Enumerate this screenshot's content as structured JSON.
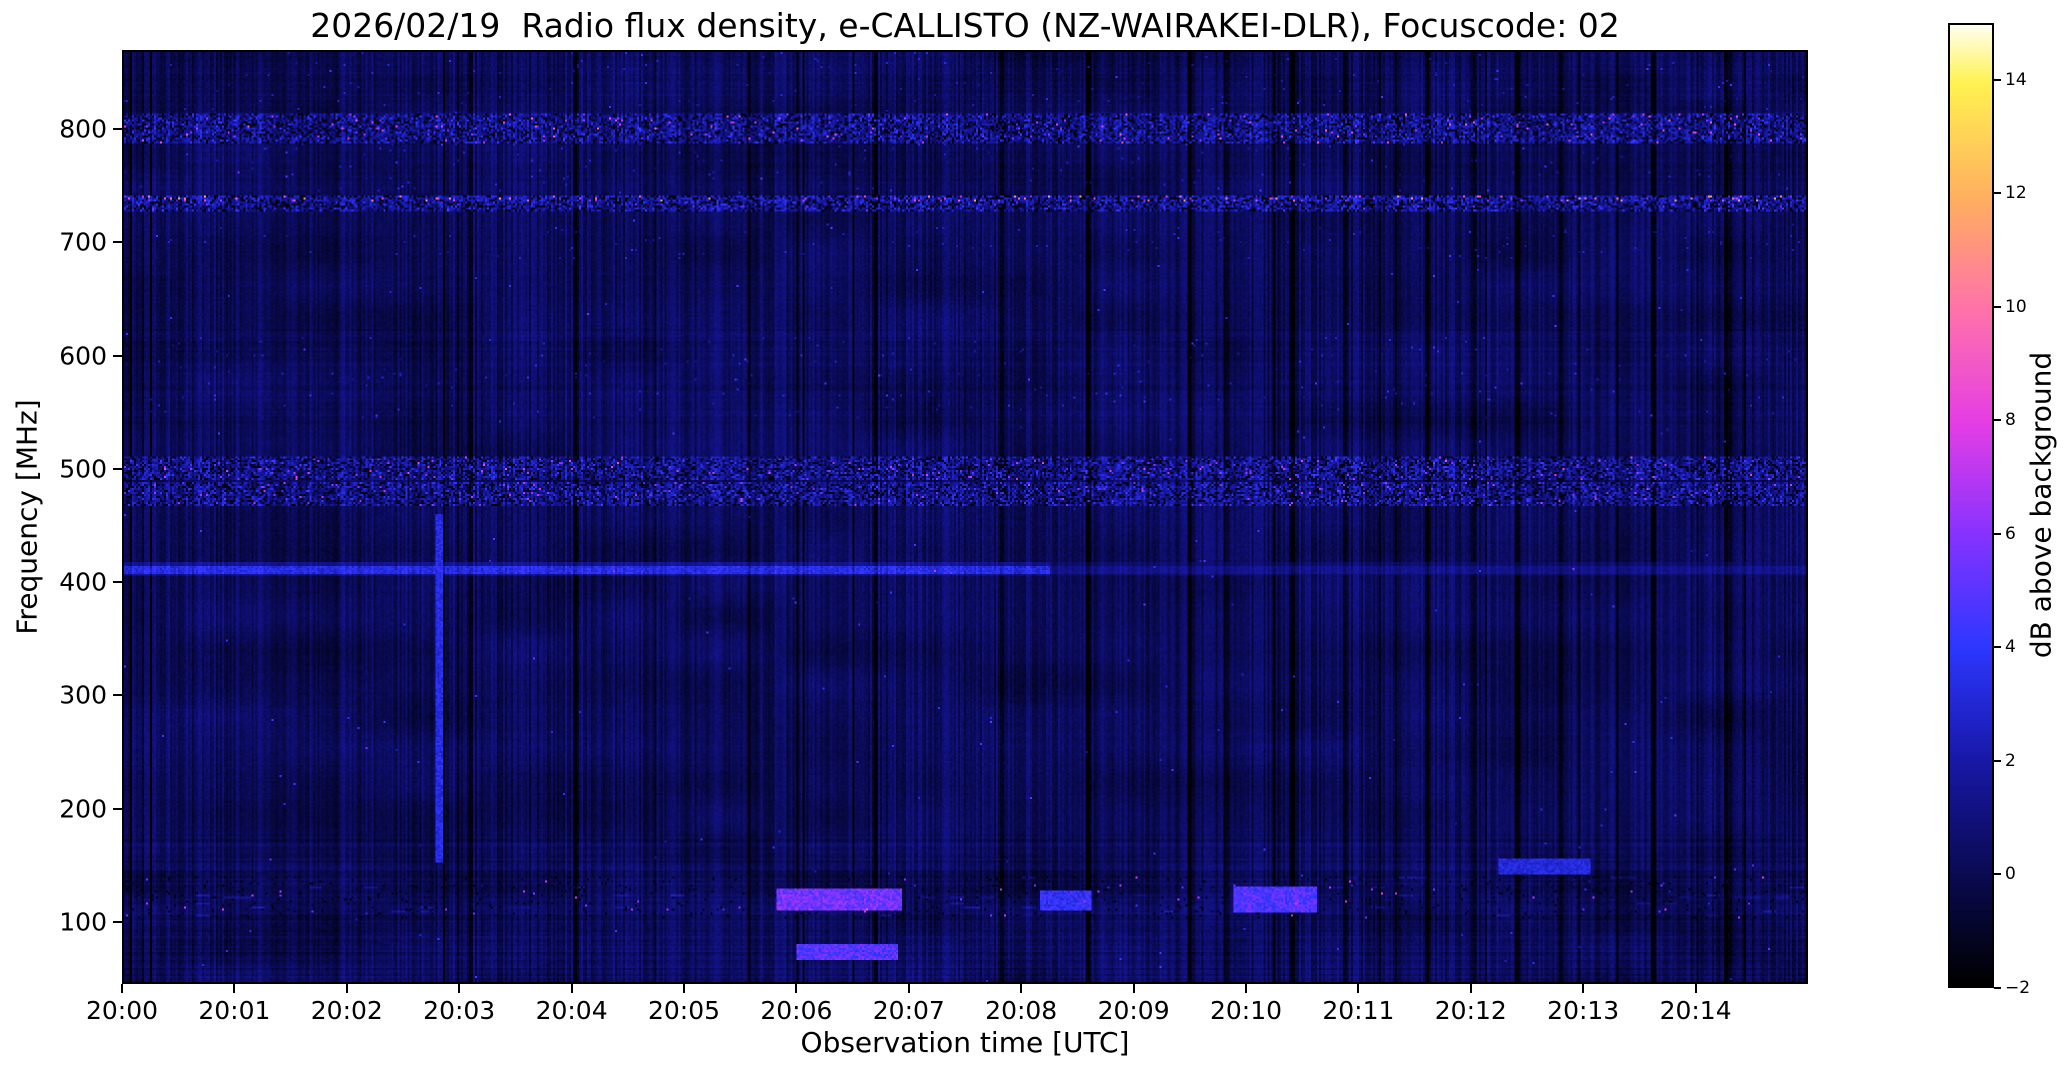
{
  "chart_data": {
    "type": "heatmap",
    "title": "2026/02/19  Radio flux density, e-CALLISTO (NZ-WAIRAKEI-DLR), Focuscode: 02",
    "date": "2026/02/19",
    "instrument": "e-CALLISTO",
    "station": "NZ-WAIRAKEI-DLR",
    "focuscode": "02",
    "xlabel": "Observation time [UTC]",
    "ylabel": "Frequency [MHz]",
    "colorbar_label": "dB above background",
    "x_ticks": [
      "20:00",
      "20:01",
      "20:02",
      "20:03",
      "20:04",
      "20:05",
      "20:06",
      "20:07",
      "20:08",
      "20:09",
      "20:10",
      "20:11",
      "20:12",
      "20:13",
      "20:14"
    ],
    "x_axis_span_minutes": 15,
    "x_range": [
      "20:00",
      "20:15"
    ],
    "y_ticks": [
      {
        "value": 800,
        "label": "800"
      },
      {
        "value": 700,
        "label": "700"
      },
      {
        "value": 600,
        "label": "600"
      },
      {
        "value": 500,
        "label": "500"
      },
      {
        "value": 400,
        "label": "400"
      },
      {
        "value": 300,
        "label": "300"
      },
      {
        "value": 200,
        "label": "200"
      },
      {
        "value": 100,
        "label": "100"
      }
    ],
    "y_range_mhz": [
      45,
      870
    ],
    "color_range_db": [
      -2,
      15
    ],
    "colorbar_ticks": [
      {
        "value": 14,
        "label": "14"
      },
      {
        "value": 12,
        "label": "12"
      },
      {
        "value": 10,
        "label": "10"
      },
      {
        "value": 8,
        "label": "8"
      },
      {
        "value": 6,
        "label": "6"
      },
      {
        "value": 4,
        "label": "4"
      },
      {
        "value": 2,
        "label": "2"
      },
      {
        "value": 0,
        "label": "0"
      },
      {
        "value": -2,
        "label": "−2"
      }
    ],
    "colormap_stops": [
      [
        0.0,
        0,
        0,
        0
      ],
      [
        0.118,
        10,
        10,
        84
      ],
      [
        0.235,
        24,
        24,
        168
      ],
      [
        0.353,
        45,
        55,
        255
      ],
      [
        0.47,
        135,
        50,
        255
      ],
      [
        0.588,
        230,
        62,
        228
      ],
      [
        0.705,
        255,
        115,
        170
      ],
      [
        0.82,
        255,
        175,
        95
      ],
      [
        0.94,
        255,
        242,
        80
      ],
      [
        1.0,
        255,
        255,
        238
      ]
    ],
    "features": {
      "background_level_db": 0.6,
      "bands": [
        {
          "f_low": 818,
          "f_high": 870,
          "kind": "mottle",
          "intensity": 2.0
        },
        {
          "f_low": 790,
          "f_high": 816,
          "kind": "speckle",
          "intensity": 9
        },
        {
          "f_low": 746,
          "f_high": 790,
          "kind": "mottle",
          "intensity": 2.5
        },
        {
          "f_low": 738,
          "f_high": 744,
          "kind": "speckle_line",
          "intensity": 12
        },
        {
          "f_low": 730,
          "f_high": 738,
          "kind": "speckle",
          "intensity": 5
        },
        {
          "f_low": 686,
          "f_high": 716,
          "kind": "mottle",
          "intensity": 1.6
        },
        {
          "f_low": 545,
          "f_high": 618,
          "kind": "mottle",
          "intensity": 2.0
        },
        {
          "f_low": 490,
          "f_high": 512,
          "kind": "speckle",
          "intensity": 8
        },
        {
          "f_low": 468,
          "f_high": 488,
          "kind": "speckle",
          "intensity": 7
        },
        {
          "f_low": 418,
          "f_high": 455,
          "kind": "dashes",
          "intensity": 2.2
        },
        {
          "f_low": 405,
          "f_high": 417,
          "kind": "line",
          "intensity": 3.5
        },
        {
          "f_low": 140,
          "f_high": 165,
          "kind": "dashes",
          "intensity": 2.4
        },
        {
          "f_low": 100,
          "f_high": 138,
          "kind": "structured",
          "intensity": 3.0
        },
        {
          "f_low": 58,
          "f_high": 82,
          "kind": "dashes",
          "intensity": 2.4
        }
      ],
      "transients": [
        {
          "t_frac": 0.425,
          "t_width": 0.075,
          "f_low": 107,
          "f_high": 127,
          "intensity": 7.0
        },
        {
          "t_frac": 0.43,
          "t_width": 0.06,
          "f_low": 63,
          "f_high": 77,
          "intensity": 6.2
        },
        {
          "t_frac": 0.56,
          "t_width": 0.03,
          "f_low": 108,
          "f_high": 126,
          "intensity": 5.0
        },
        {
          "t_frac": 0.685,
          "t_width": 0.05,
          "f_low": 106,
          "f_high": 129,
          "intensity": 6.0
        },
        {
          "t_frac": 0.845,
          "t_width": 0.055,
          "f_low": 140,
          "f_high": 153,
          "intensity": 4.0
        },
        {
          "t_frac": 0.187,
          "t_width": 0.004,
          "f_low": 150,
          "f_high": 460,
          "intensity": 4.2
        }
      ],
      "dark_columns": [
        0.205,
        0.268,
        0.447,
        0.523,
        0.574,
        0.634,
        0.655,
        0.695,
        0.727,
        0.756,
        0.775,
        0.803,
        0.829,
        0.855,
        0.91,
        0.955
      ]
    }
  }
}
